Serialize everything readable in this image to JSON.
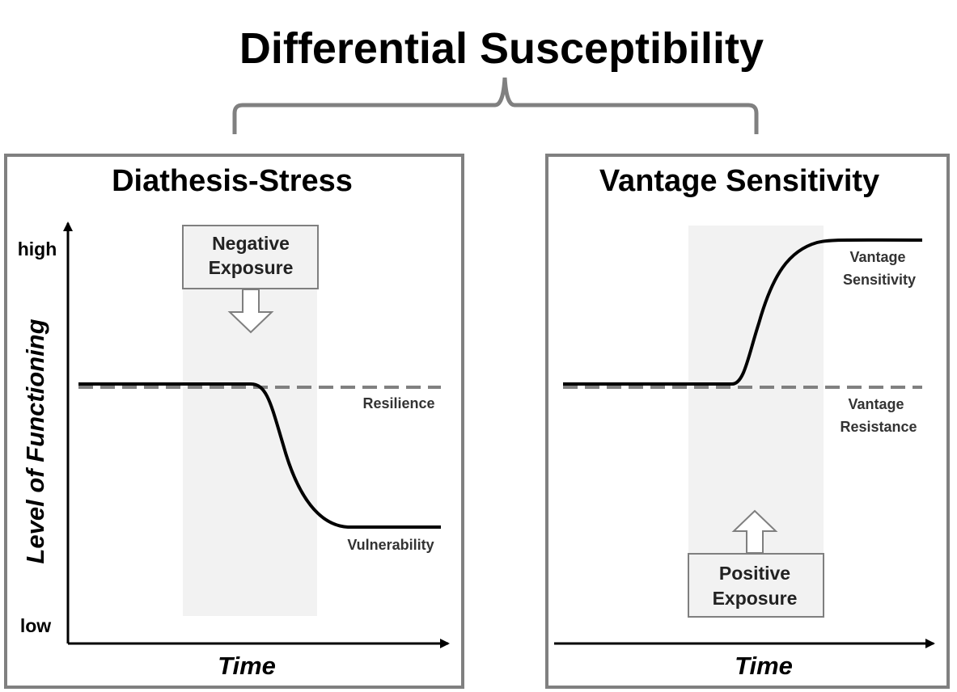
{
  "title": "Differential Susceptibility",
  "left_panel": {
    "title": "Diathesis-Stress",
    "y_axis_label": "Level of Functioning",
    "y_high": "high",
    "y_low": "low",
    "x_axis_label": "Time",
    "exposure_line1": "Negative",
    "exposure_line2": "Exposure",
    "baseline_label": "Resilience",
    "outcome_label": "Vulnerability"
  },
  "right_panel": {
    "title": "Vantage Sensitivity",
    "x_axis_label": "Time",
    "exposure_line1": "Positive",
    "exposure_line2": "Exposure",
    "outcome_label_line1": "Vantage",
    "outcome_label_line2": "Sensitivity",
    "baseline_label_line1": "Vantage",
    "baseline_label_line2": "Resistance"
  },
  "colors": {
    "panel_border": "#808080",
    "brace": "#808080",
    "shade": "#f2f2f2",
    "dashed": "#808080",
    "curve": "#000000",
    "arrow_outline": "#7f7f7f"
  }
}
